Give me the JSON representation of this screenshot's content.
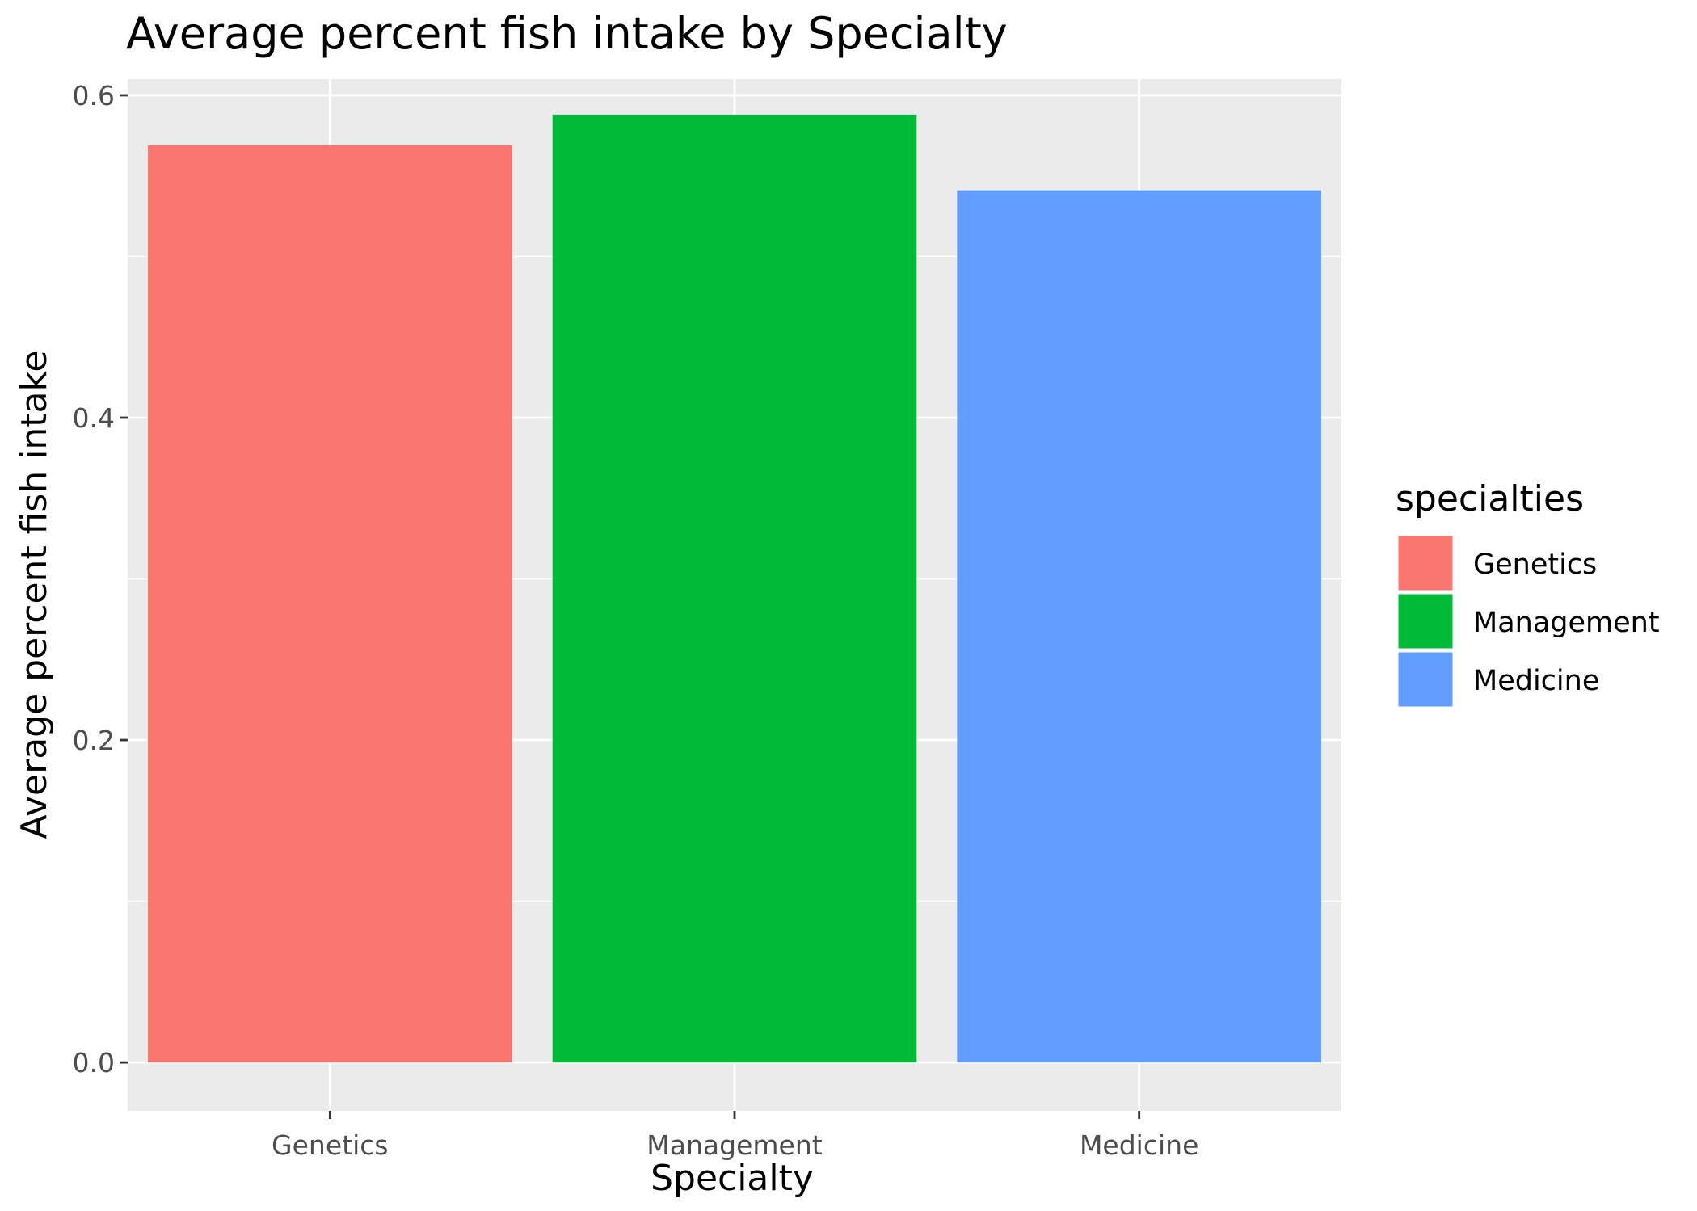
{
  "chart_data": {
    "type": "bar",
    "title": "Average percent fish intake by Specialty",
    "xlabel": "Specialty",
    "ylabel": "Average percent fish intake",
    "categories": [
      "Genetics",
      "Management",
      "Medicine"
    ],
    "values": [
      0.569,
      0.588,
      0.541
    ],
    "colors": [
      "#F8766D",
      "#00BA38",
      "#619CFF"
    ],
    "ylim": [
      -0.03,
      0.61
    ],
    "yticks": [
      0.0,
      0.2,
      0.4,
      0.6
    ],
    "ytick_labels": [
      "0.0",
      "0.2",
      "0.4",
      "0.6"
    ],
    "grid": true,
    "panel_color": "#EBEBEB",
    "legend": {
      "title": "specialties",
      "position": "right",
      "entries": [
        "Genetics",
        "Management",
        "Medicine"
      ]
    }
  }
}
